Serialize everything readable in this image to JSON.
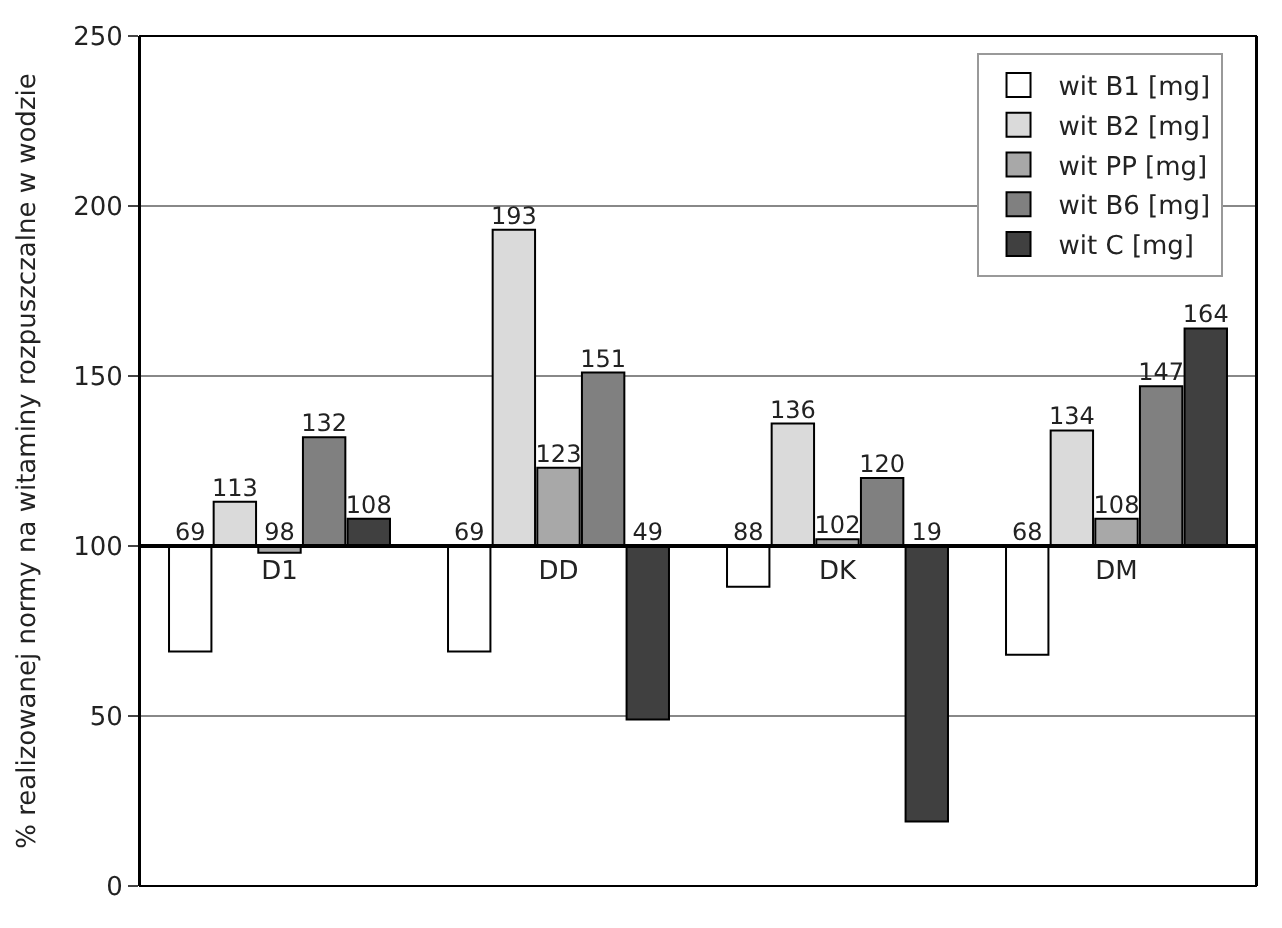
{
  "chart_data": {
    "type": "bar",
    "ylabel": "% realizowanej normy na witaminy rozpuszczalne w wodzie",
    "categories": [
      "D1",
      "DD",
      "DK",
      "DM"
    ],
    "series": [
      {
        "name": "wit B1 [mg]",
        "color": "#ffffff",
        "base": [
          100,
          100,
          100,
          100
        ],
        "values": [
          -31,
          -31,
          -12,
          -32
        ],
        "value_labels": [
          "69",
          "69",
          "88",
          "68"
        ]
      },
      {
        "name": "wit B2 [mg]",
        "color": "#dadada",
        "base": [
          100,
          100,
          100,
          100
        ],
        "values": [
          13,
          93,
          36,
          34
        ],
        "value_labels": [
          "113",
          "193",
          "136",
          "134"
        ]
      },
      {
        "name": "wit PP [mg]",
        "color": "#a8a8a8",
        "base": [
          100,
          100,
          100,
          100
        ],
        "values": [
          -2,
          23,
          2,
          8
        ],
        "value_labels": [
          "98",
          "123",
          "102",
          "108"
        ]
      },
      {
        "name": "wit B6 [mg]",
        "color": "#808080",
        "base": [
          100,
          100,
          100,
          100
        ],
        "values": [
          32,
          51,
          20,
          47
        ],
        "value_labels": [
          "132",
          "151",
          "120",
          "147"
        ]
      },
      {
        "name": "wit C [mg]",
        "color": "#404040",
        "base": [
          100,
          100,
          100,
          100
        ],
        "values": [
          8,
          -51,
          -81,
          64
        ],
        "value_labels": [
          "108",
          "49",
          "19",
          "164"
        ]
      }
    ],
    "ylim": [
      0,
      250
    ],
    "yticks": [
      0,
      50,
      100,
      150,
      200,
      250
    ],
    "grid": "y",
    "legend": "top right"
  }
}
